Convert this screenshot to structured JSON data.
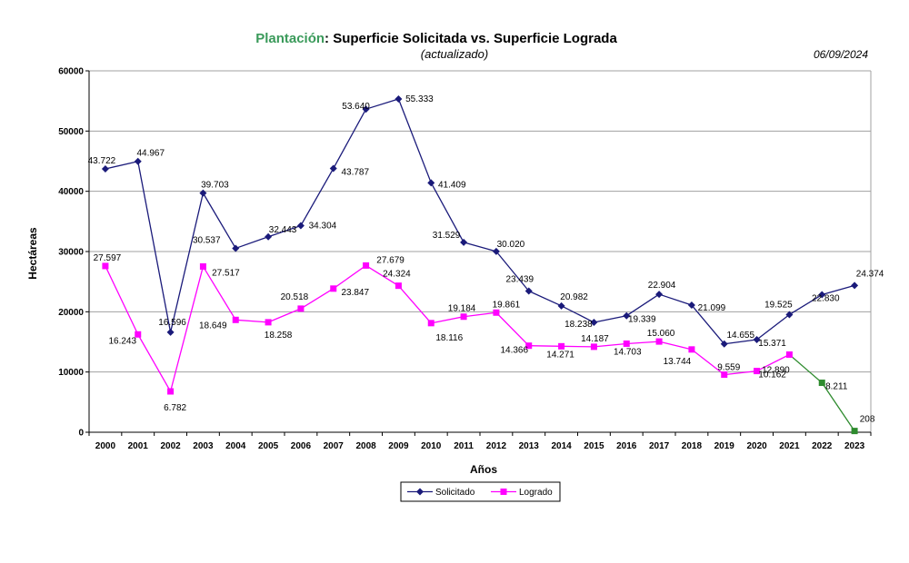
{
  "chart_data": {
    "type": "line",
    "title_prefix": "Plantación",
    "title_rest": ": Superficie Solicitada vs. Superficie Lograda",
    "subtitle": "(actualizado)",
    "date": "06/09/2024",
    "xlabel": "Años",
    "ylabel": "Hectáreas",
    "ylim": [
      0,
      60000
    ],
    "yticks": [
      "0",
      "10000",
      "20000",
      "30000",
      "40000",
      "50000",
      "60000"
    ],
    "grid": true,
    "legend_position": "bottom-center",
    "categories": [
      "2000",
      "2001",
      "2002",
      "2003",
      "2004",
      "2005",
      "2006",
      "2007",
      "2008",
      "2009",
      "2010",
      "2011",
      "2012",
      "2013",
      "2014",
      "2015",
      "2016",
      "2017",
      "2018",
      "2019",
      "2020",
      "2021",
      "2022",
      "2023"
    ],
    "series": [
      {
        "name": "Solicitado",
        "color": "#1a1a7a",
        "marker": "diamond",
        "values": [
          43722,
          44967,
          16596,
          39703,
          30537,
          32443,
          34304,
          43787,
          53640,
          55333,
          41409,
          31529,
          30020,
          23439,
          20982,
          18238,
          19339,
          22904,
          21099,
          14655,
          15371,
          19525,
          22830,
          24374
        ],
        "labels": [
          "43.722",
          "44.967",
          "16.596",
          "39.703",
          "30.537",
          "32.443",
          "34.304",
          "43.787",
          "53.640",
          "55.333",
          "41.409",
          "31.529",
          "30.020",
          "23.439",
          "20.982",
          "18.238",
          "19.339",
          "22.904",
          "21.099",
          "14.655",
          "15.371",
          "19.525",
          "22.830",
          "24.374"
        ]
      },
      {
        "name": "Logrado",
        "color": "#ff00ff",
        "marker": "square",
        "values": [
          27597,
          16243,
          6782,
          27517,
          18649,
          18258,
          20518,
          23847,
          27679,
          24324,
          18116,
          19184,
          19861,
          14366,
          14271,
          14187,
          14703,
          15060,
          13744,
          9559,
          10162,
          12890,
          8211,
          208
        ],
        "labels": [
          "27.597",
          "16.243",
          "6.782",
          "27.517",
          "18.649",
          "18.258",
          "20.518",
          "23.847",
          "27.679",
          "24.324",
          "18.116",
          "19.184",
          "19.861",
          "14.366",
          "14.271",
          "14.187",
          "14.703",
          "15.060",
          "13.744",
          "9.559",
          "10.162",
          "12.890",
          "8.211",
          "208"
        ],
        "highlight_from_index": 21,
        "highlight_color": "#2e8b2e"
      }
    ]
  },
  "colors": {
    "title_prefix": "#3a9a5a",
    "gridline": "#a0a0a0",
    "axis": "#000000"
  }
}
